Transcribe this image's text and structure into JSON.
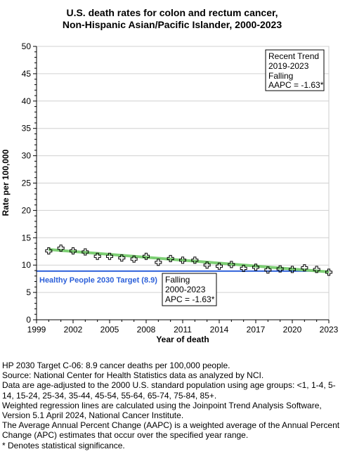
{
  "chart_data": {
    "type": "scatter",
    "title_lines": [
      "U.S. death rates for colon and rectum cancer,",
      "Non-Hispanic Asian/Pacific Islander,  2000-2023"
    ],
    "xlabel": "Year of death",
    "ylabel": "Rate per 100,000",
    "xlim": [
      1999,
      2023
    ],
    "ylim": [
      0,
      50
    ],
    "x_ticks": [
      1999,
      2002,
      2005,
      2008,
      2011,
      2014,
      2017,
      2020,
      2023
    ],
    "y_ticks": [
      0,
      5,
      10,
      15,
      20,
      25,
      30,
      35,
      40,
      45,
      50
    ],
    "grid": "horizontal",
    "series": [
      {
        "type": "scatter",
        "marker": "plus",
        "x": [
          2000,
          2001,
          2002,
          2003,
          2004,
          2005,
          2006,
          2007,
          2008,
          2009,
          2010,
          2011,
          2012,
          2013,
          2014,
          2015,
          2016,
          2017,
          2018,
          2019,
          2020,
          2021,
          2022,
          2023
        ],
        "y": [
          12.6,
          13.1,
          12.6,
          12.4,
          11.6,
          11.6,
          11.3,
          11.1,
          11.6,
          10.5,
          11.2,
          10.9,
          10.9,
          10.0,
          9.8,
          10.1,
          9.4,
          9.6,
          9.1,
          9.3,
          9.2,
          9.5,
          9.2,
          8.7
        ],
        "color": "#000000"
      },
      {
        "type": "line",
        "x": [
          2000,
          2023
        ],
        "y": [
          12.85,
          8.75
        ],
        "color": "#7dcf74"
      }
    ],
    "target": {
      "value": 8.9,
      "label": "Healthy People 2030 Target (8.9)",
      "color": "#2b5fd9"
    },
    "annotations": [
      {
        "lines": [
          "Recent Trend",
          "2019-2023",
          "Falling",
          "AAPC = -1.63*"
        ]
      },
      {
        "lines": [
          "Falling",
          "2000-2023",
          "APC = -1.63*"
        ]
      }
    ]
  },
  "footnotes": [
    "HP 2030 Target C-06: 8.9 cancer deaths per 100,000 people.",
    "Source: National Center for Health Statistics data as analyzed by NCI.",
    "Data are age-adjusted to the 2000 U.S. standard population using age groups: <1, 1-4, 5-14, 15-24, 25-34, 35-44, 45-54, 55-64, 65-74, 75-84, 85+.",
    "Weighted regression lines are calculated using the Joinpoint Trend Analysis Software, Version 5.1 April 2024, National Cancer Institute.",
    "The Average Annual Percent Change (AAPC) is a weighted average of the Annual Percent Change (APC) estimates that occur over the specified year range.",
    "* Denotes statistical significance."
  ]
}
